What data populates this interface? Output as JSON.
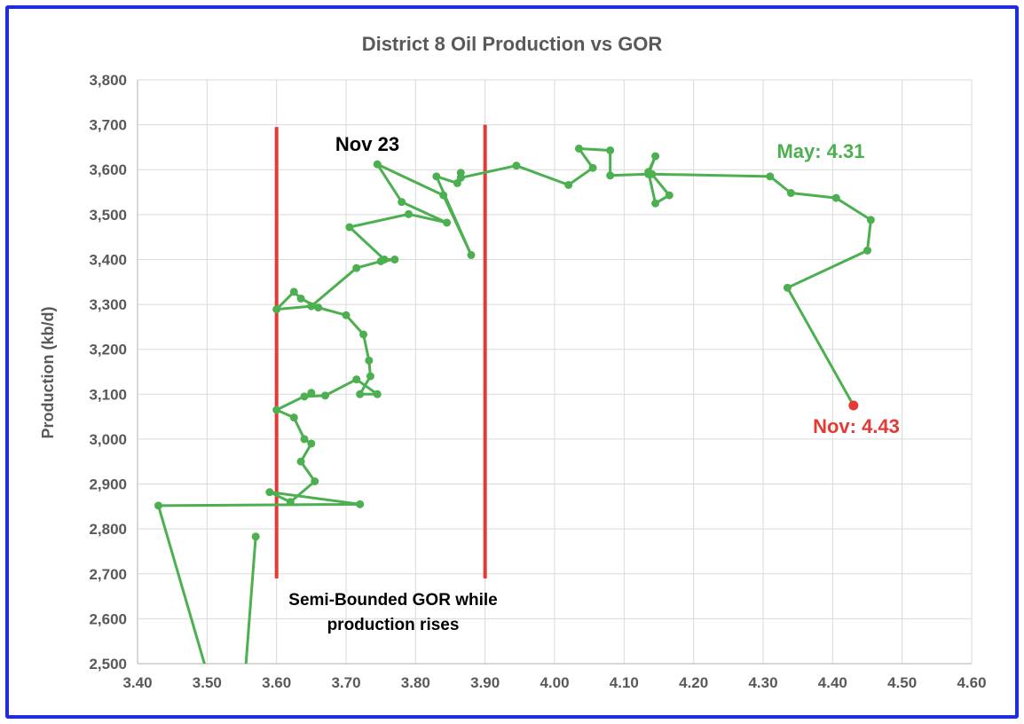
{
  "chart_data": {
    "type": "line",
    "title": "District 8 Oil Production vs GOR",
    "xlabel": "",
    "ylabel": "Production (kb/d)",
    "xlim": [
      3.4,
      4.6
    ],
    "ylim": [
      2500,
      3800
    ],
    "x_ticks": [
      "3.40",
      "3.50",
      "3.60",
      "3.70",
      "3.80",
      "3.90",
      "4.00",
      "4.10",
      "4.20",
      "4.30",
      "4.40",
      "4.50",
      "4.60"
    ],
    "y_ticks": [
      "2,500",
      "2,600",
      "2,700",
      "2,800",
      "2,900",
      "3,000",
      "3,100",
      "3,200",
      "3,300",
      "3,400",
      "3,500",
      "3,600",
      "3,700",
      "3,800"
    ],
    "grid": true,
    "series": [
      {
        "color": "#4caf50",
        "marker_color": "#4caf50",
        "points": [
          [
            3.5,
            2480
          ],
          [
            3.43,
            2852
          ],
          [
            3.72,
            2855
          ],
          [
            3.59,
            2882
          ],
          [
            3.62,
            2860
          ],
          [
            3.655,
            2906
          ],
          [
            3.635,
            2950
          ],
          [
            3.65,
            2990
          ],
          [
            3.64,
            3000
          ],
          [
            3.625,
            3048
          ],
          [
            3.6,
            3065
          ],
          [
            3.65,
            3103
          ],
          [
            3.64,
            3095
          ],
          [
            3.67,
            3097
          ],
          [
            3.715,
            3133
          ],
          [
            3.745,
            3100
          ],
          [
            3.72,
            3100
          ],
          [
            3.735,
            3140
          ],
          [
            3.733,
            3175
          ],
          [
            3.725,
            3233
          ],
          [
            3.7,
            3276
          ],
          [
            3.66,
            3293
          ],
          [
            3.635,
            3313
          ],
          [
            3.625,
            3328
          ],
          [
            3.6,
            3289
          ],
          [
            3.65,
            3296
          ],
          [
            3.715,
            3381
          ],
          [
            3.75,
            3396
          ],
          [
            3.77,
            3400
          ],
          [
            3.755,
            3400
          ],
          [
            3.705,
            3472
          ],
          [
            3.79,
            3501
          ],
          [
            3.845,
            3482
          ],
          [
            3.78,
            3528
          ],
          [
            3.745,
            3612
          ],
          [
            3.84,
            3543
          ],
          [
            3.88,
            3410
          ],
          [
            3.83,
            3585
          ],
          [
            3.86,
            3570
          ],
          [
            3.865,
            3593
          ],
          [
            3.865,
            3582
          ],
          [
            3.945,
            3609
          ],
          [
            4.02,
            3566
          ],
          [
            4.055,
            3604
          ],
          [
            4.035,
            3647
          ],
          [
            4.08,
            3643
          ],
          [
            4.08,
            3587
          ],
          [
            4.135,
            3590
          ],
          [
            4.145,
            3630
          ],
          [
            4.135,
            3595
          ],
          [
            4.145,
            3525
          ],
          [
            4.165,
            3543
          ],
          [
            4.14,
            3590
          ],
          [
            4.31,
            3585
          ],
          [
            4.34,
            3548
          ],
          [
            4.405,
            3537
          ],
          [
            4.455,
            3488
          ],
          [
            4.45,
            3420
          ],
          [
            4.335,
            3337
          ],
          [
            4.43,
            3075
          ]
        ]
      },
      {
        "color": "#4caf50",
        "marker_color": "#4caf50",
        "points": [
          [
            3.555,
            2480
          ],
          [
            3.57,
            2783
          ]
        ]
      }
    ],
    "highlight_point": {
      "x": 4.43,
      "y": 3075,
      "color": "#e53935"
    },
    "vertical_lines": [
      {
        "x": 3.6,
        "y_from": 2690,
        "y_to": 3695,
        "color": "#e53935"
      },
      {
        "x": 3.9,
        "y_from": 2690,
        "y_to": 3700,
        "color": "#e53935"
      }
    ],
    "annotations": {
      "nov23": "Nov 23",
      "may": "May: 4.31",
      "nov": "Nov: 4.43",
      "bounded_line1": "Semi-Bounded GOR while",
      "bounded_line2": "production rises"
    },
    "colors": {
      "border": "#1f2be0",
      "series": "#4caf50",
      "highlight": "#e53935",
      "grid": "#d9d9d9",
      "axis_text": "#595959"
    }
  }
}
